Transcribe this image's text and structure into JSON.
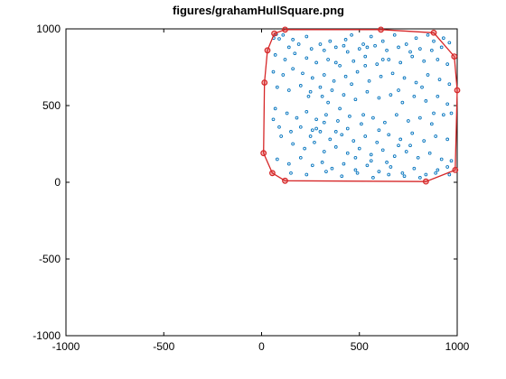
{
  "chart_data": {
    "type": "scatter",
    "title": "figures/grahamHullSquare.png",
    "xlabel": "",
    "ylabel": "",
    "xlim": [
      -1000,
      1000
    ],
    "ylim": [
      -1000,
      1000
    ],
    "x_ticks": [
      -1000,
      -500,
      0,
      500,
      1000
    ],
    "y_ticks": [
      -1000,
      -500,
      0,
      500,
      1000
    ],
    "x_tick_labels": [
      "-1000",
      "-500",
      "0",
      "500",
      "1000"
    ],
    "y_tick_labels": [
      "-1000",
      "-500",
      "0",
      "500",
      "1000"
    ],
    "grid": false,
    "legend": "none",
    "series": [
      {
        "kind": "points",
        "color": "#0072bd",
        "marker": "open-circle",
        "points": [
          [
            62,
            940
          ],
          [
            75,
            965
          ],
          [
            90,
            935
          ],
          [
            110,
            960
          ],
          [
            160,
            930
          ],
          [
            230,
            950
          ],
          [
            300,
            900
          ],
          [
            350,
            920
          ],
          [
            420,
            890
          ],
          [
            460,
            960
          ],
          [
            520,
            900
          ],
          [
            560,
            950
          ],
          [
            620,
            920
          ],
          [
            680,
            960
          ],
          [
            740,
            900
          ],
          [
            790,
            940
          ],
          [
            850,
            960
          ],
          [
            880,
            920
          ],
          [
            930,
            940
          ],
          [
            960,
            910
          ],
          [
            140,
            880
          ],
          [
            190,
            900
          ],
          [
            255,
            870
          ],
          [
            320,
            860
          ],
          [
            380,
            880
          ],
          [
            440,
            850
          ],
          [
            500,
            870
          ],
          [
            580,
            890
          ],
          [
            640,
            860
          ],
          [
            700,
            880
          ],
          [
            760,
            850
          ],
          [
            810,
            870
          ],
          [
            870,
            860
          ],
          [
            920,
            880
          ],
          [
            70,
            830
          ],
          [
            120,
            800
          ],
          [
            170,
            840
          ],
          [
            230,
            810
          ],
          [
            280,
            780
          ],
          [
            340,
            800
          ],
          [
            400,
            760
          ],
          [
            470,
            790
          ],
          [
            530,
            820
          ],
          [
            590,
            770
          ],
          [
            650,
            800
          ],
          [
            710,
            780
          ],
          [
            770,
            820
          ],
          [
            830,
            790
          ],
          [
            900,
            800
          ],
          [
            950,
            770
          ],
          [
            60,
            720
          ],
          [
            110,
            700
          ],
          [
            160,
            740
          ],
          [
            210,
            710
          ],
          [
            260,
            680
          ],
          [
            320,
            700
          ],
          [
            370,
            660
          ],
          [
            430,
            690
          ],
          [
            490,
            720
          ],
          [
            550,
            660
          ],
          [
            610,
            690
          ],
          [
            670,
            710
          ],
          [
            730,
            680
          ],
          [
            790,
            650
          ],
          [
            850,
            700
          ],
          [
            910,
            670
          ],
          [
            960,
            640
          ],
          [
            80,
            620
          ],
          [
            140,
            600
          ],
          [
            200,
            630
          ],
          [
            250,
            590
          ],
          [
            310,
            560
          ],
          [
            360,
            600
          ],
          [
            420,
            570
          ],
          [
            480,
            540
          ],
          [
            540,
            590
          ],
          [
            600,
            550
          ],
          [
            660,
            570
          ],
          [
            720,
            520
          ],
          [
            780,
            560
          ],
          [
            840,
            530
          ],
          [
            900,
            560
          ],
          [
            950,
            510
          ],
          [
            70,
            480
          ],
          [
            130,
            450
          ],
          [
            180,
            420
          ],
          [
            230,
            460
          ],
          [
            280,
            410
          ],
          [
            330,
            440
          ],
          [
            390,
            400
          ],
          [
            450,
            430
          ],
          [
            510,
            380
          ],
          [
            570,
            420
          ],
          [
            630,
            390
          ],
          [
            690,
            440
          ],
          [
            750,
            400
          ],
          [
            810,
            420
          ],
          [
            870,
            380
          ],
          [
            930,
            440
          ],
          [
            970,
            450
          ],
          [
            60,
            410
          ],
          [
            90,
            360
          ],
          [
            150,
            330
          ],
          [
            200,
            360
          ],
          [
            250,
            300
          ],
          [
            300,
            330
          ],
          [
            350,
            280
          ],
          [
            410,
            310
          ],
          [
            470,
            270
          ],
          [
            530,
            300
          ],
          [
            590,
            260
          ],
          [
            650,
            310
          ],
          [
            710,
            280
          ],
          [
            770,
            320
          ],
          [
            830,
            270
          ],
          [
            890,
            300
          ],
          [
            950,
            280
          ],
          [
            100,
            300
          ],
          [
            160,
            250
          ],
          [
            220,
            220
          ],
          [
            270,
            260
          ],
          [
            320,
            200
          ],
          [
            380,
            230
          ],
          [
            440,
            190
          ],
          [
            500,
            220
          ],
          [
            560,
            180
          ],
          [
            620,
            210
          ],
          [
            680,
            170
          ],
          [
            740,
            200
          ],
          [
            800,
            160
          ],
          [
            860,
            190
          ],
          [
            920,
            150
          ],
          [
            970,
            140
          ],
          [
            80,
            150
          ],
          [
            140,
            120
          ],
          [
            200,
            160
          ],
          [
            260,
            110
          ],
          [
            310,
            130
          ],
          [
            360,
            90
          ],
          [
            420,
            120
          ],
          [
            480,
            80
          ],
          [
            540,
            110
          ],
          [
            600,
            70
          ],
          [
            660,
            100
          ],
          [
            720,
            60
          ],
          [
            780,
            90
          ],
          [
            840,
            50
          ],
          [
            900,
            80
          ],
          [
            950,
            100
          ],
          [
            150,
            60
          ],
          [
            230,
            50
          ],
          [
            330,
            70
          ],
          [
            410,
            40
          ],
          [
            490,
            60
          ],
          [
            570,
            30
          ],
          [
            650,
            50
          ],
          [
            730,
            40
          ],
          [
            810,
            30
          ],
          [
            890,
            60
          ],
          [
            960,
            50
          ],
          [
            260,
            340
          ],
          [
            320,
            390
          ],
          [
            280,
            350
          ],
          [
            440,
            350
          ],
          [
            380,
            330
          ],
          [
            480,
            160
          ],
          [
            560,
            140
          ],
          [
            640,
            130
          ],
          [
            700,
            240
          ],
          [
            760,
            240
          ],
          [
            600,
            340
          ],
          [
            520,
            440
          ],
          [
            400,
            480
          ],
          [
            340,
            520
          ],
          [
            460,
            640
          ],
          [
            530,
            760
          ],
          [
            380,
            780
          ],
          [
            300,
            620
          ],
          [
            240,
            560
          ],
          [
            820,
            620
          ],
          [
            880,
            450
          ],
          [
            700,
            600
          ],
          [
            620,
            800
          ],
          [
            540,
            880
          ],
          [
            430,
            930
          ]
        ]
      },
      {
        "kind": "hull",
        "color": "#d62728",
        "marker": "circle",
        "points": [
          [
            120,
            10
          ],
          [
            840,
            5
          ],
          [
            990,
            80
          ],
          [
            1000,
            600
          ],
          [
            985,
            820
          ],
          [
            880,
            975
          ],
          [
            610,
            995
          ],
          [
            120,
            995
          ],
          [
            65,
            970
          ],
          [
            30,
            860
          ],
          [
            15,
            650
          ],
          [
            10,
            190
          ],
          [
            55,
            60
          ],
          [
            120,
            10
          ]
        ]
      }
    ]
  }
}
